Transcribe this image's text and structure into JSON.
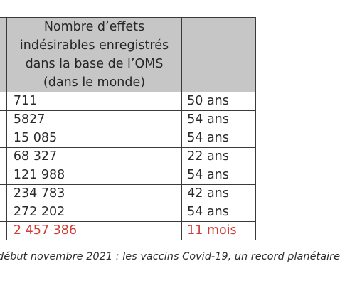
{
  "table": {
    "header": "Nombre d’effets indésirables enregistrés dans la base de l’OMS (dans le monde)",
    "rows": [
      {
        "count": "711",
        "duration": "50 ans"
      },
      {
        "count": "5827",
        "duration": "54 ans"
      },
      {
        "count": "15 085",
        "duration": "54 ans"
      },
      {
        "count": "68 327",
        "duration": "22 ans"
      },
      {
        "count": "121 988",
        "duration": "54 ans"
      },
      {
        "count": "234 783",
        "duration": "42 ans"
      },
      {
        "count": "272 202",
        "duration": "54 ans"
      },
      {
        "count": "2 457 386",
        "duration": "11 mois"
      }
    ]
  },
  "caption": "début novembre 2021 : les vaccins Covid-19, un record planétaire",
  "colors": {
    "header_background": "#c6c6c6",
    "highlight_text": "#d23b36",
    "border": "#3a3a3a"
  }
}
